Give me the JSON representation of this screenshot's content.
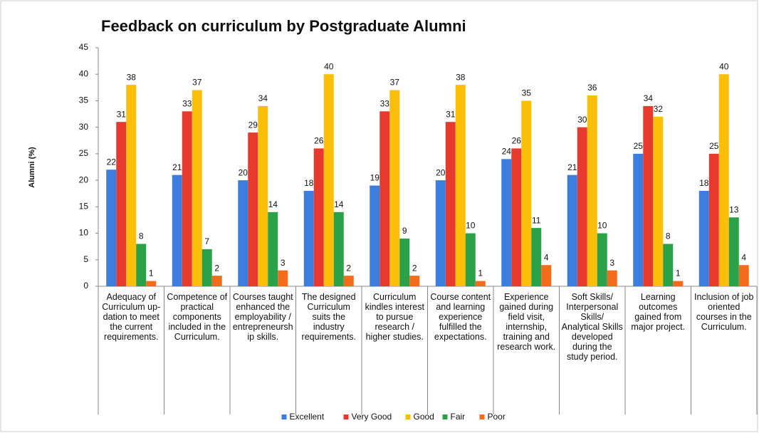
{
  "chart_data": {
    "type": "bar",
    "title": "Feedback on curriculum by Postgraduate Alumni",
    "ylabel": "Alumni (%)",
    "categories": [
      "Adequacy of Curriculum up-dation to meet the current requirements.",
      "Competence of practical components included in the Curriculum.",
      "Courses taught enhanced the employability / entrepreneurship skills.",
      "The designed Curriculum suits the industry requirements.",
      "Curriculum kindles interest to pursue research / higher studies.",
      "Course content and learning experience fulfilled the expectations.",
      "Experience gained during field visit, internship, training and research work.",
      "Soft Skills/ Interpersonal Skills/ Analytical Skills developed during the study period.",
      "Learning outcomes gained from major project.",
      "Inclusion of job oriented courses in the Curriculum."
    ],
    "series": [
      {
        "name": "Excellent",
        "color": "#3c7de0",
        "values": [
          22,
          21,
          20,
          18,
          19,
          20,
          24,
          21,
          25,
          18
        ]
      },
      {
        "name": "Very Good",
        "color": "#e8392e",
        "values": [
          31,
          33,
          29,
          26,
          33,
          31,
          26,
          30,
          34,
          25
        ]
      },
      {
        "name": "Good",
        "color": "#fbbf0a",
        "values": [
          38,
          37,
          34,
          40,
          37,
          38,
          35,
          36,
          32,
          40
        ]
      },
      {
        "name": "Fair",
        "color": "#2ba24a",
        "values": [
          8,
          7,
          14,
          14,
          9,
          10,
          11,
          10,
          8,
          13
        ]
      },
      {
        "name": "Poor",
        "color": "#f46b1b",
        "values": [
          1,
          2,
          3,
          2,
          2,
          1,
          4,
          3,
          1,
          4
        ]
      }
    ],
    "ylim": [
      0,
      45
    ],
    "yticks": [
      0,
      5,
      10,
      15,
      20,
      25,
      30,
      35,
      40,
      45
    ],
    "legend": "bottom"
  }
}
